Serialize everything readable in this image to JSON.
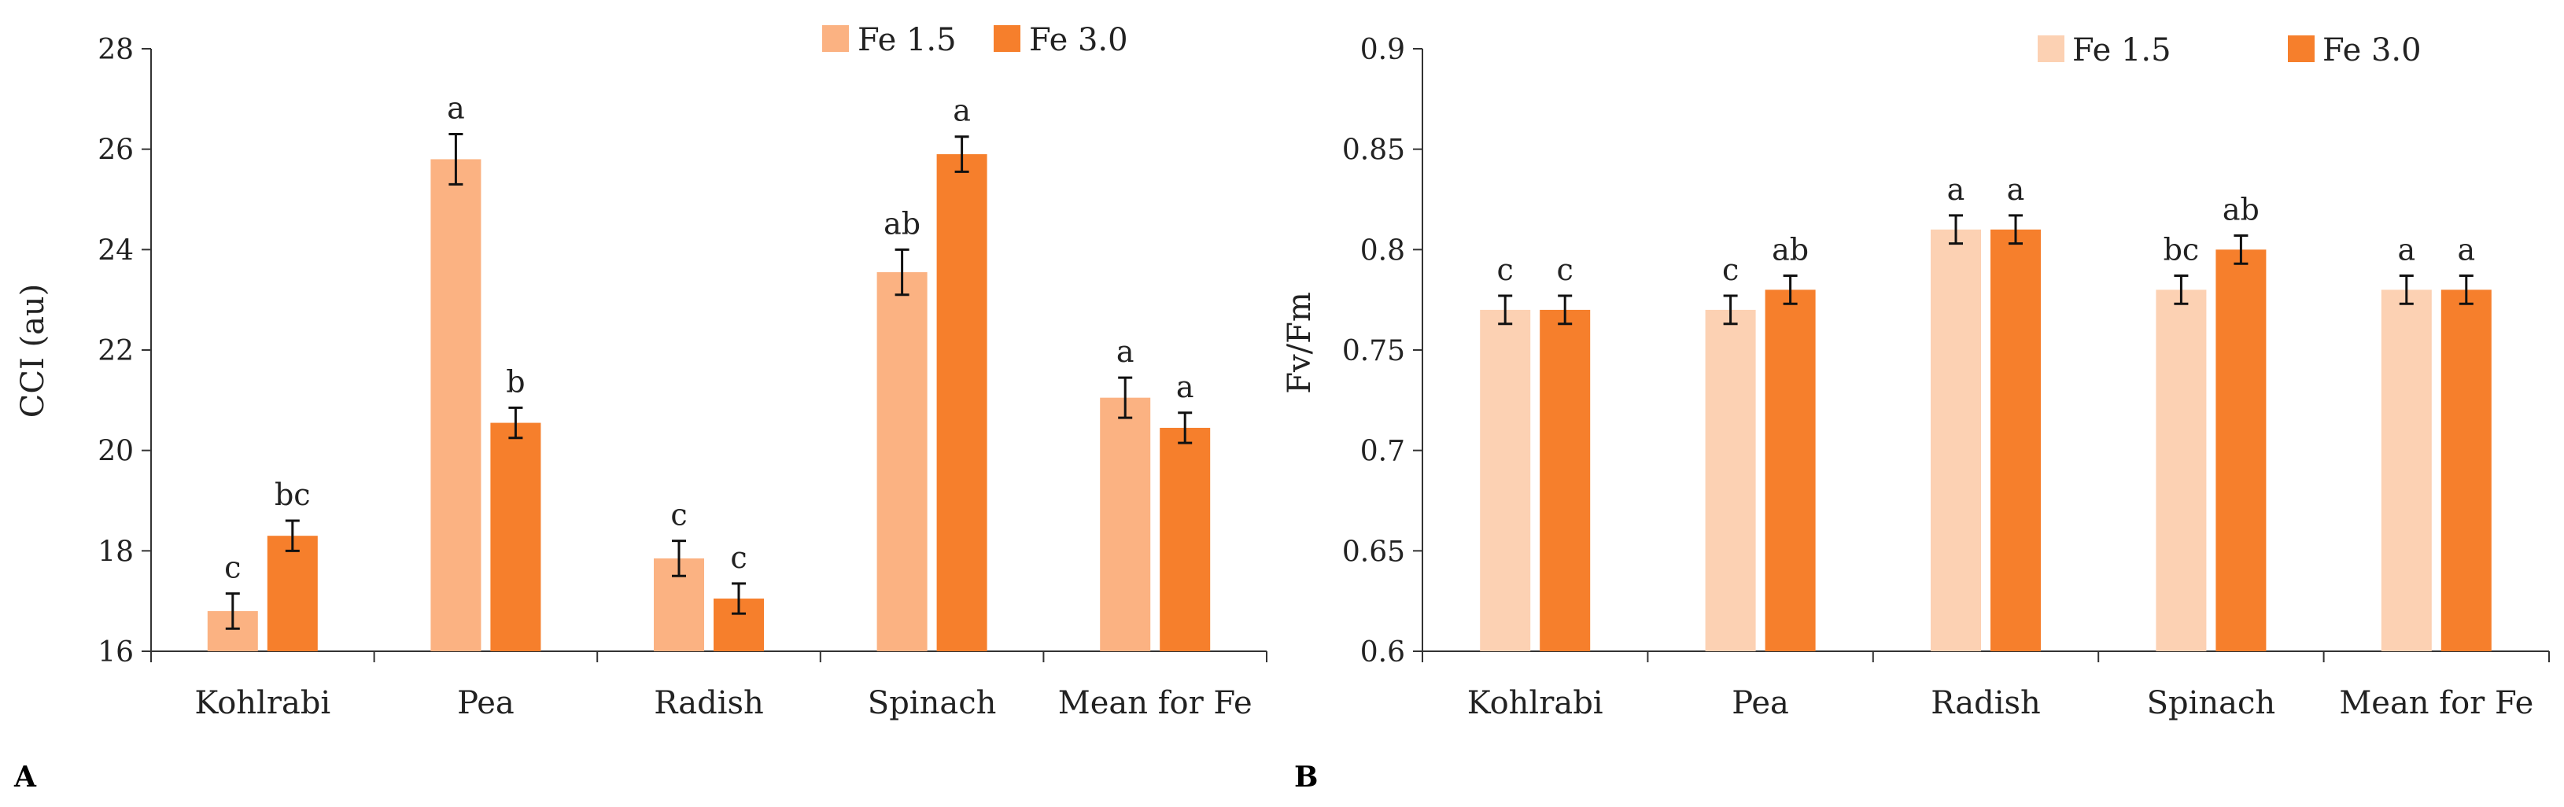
{
  "chart_data": [
    {
      "panel_label": "A",
      "type": "bar",
      "categories": [
        "Kohlrabi",
        "Pea",
        "Radish",
        "Spinach",
        "Mean for Fe"
      ],
      "ylabel": "CCI (au)",
      "xlabel": "",
      "ylim": [
        16,
        28
      ],
      "yticks": [
        16,
        18,
        20,
        22,
        24,
        26,
        28
      ],
      "ytick_labels": [
        "16",
        "18",
        "20",
        "22",
        "24",
        "26",
        "28"
      ],
      "legend_position": "top-right",
      "series": [
        {
          "name": "Fe 1.5",
          "color": "#FBB282",
          "values": [
            16.8,
            25.8,
            17.85,
            23.55,
            21.05
          ],
          "errors": [
            0.35,
            0.5,
            0.35,
            0.45,
            0.4
          ],
          "labels": [
            "c",
            "a",
            "c",
            "ab",
            "a"
          ]
        },
        {
          "name": "Fe 3.0",
          "color": "#F67F2C",
          "values": [
            18.3,
            20.55,
            17.05,
            25.9,
            20.45
          ],
          "errors": [
            0.3,
            0.3,
            0.3,
            0.35,
            0.3
          ],
          "labels": [
            "bc",
            "b",
            "c",
            "a",
            "a"
          ]
        }
      ]
    },
    {
      "panel_label": "B",
      "type": "bar",
      "categories": [
        "Kohlrabi",
        "Pea",
        "Radish",
        "Spinach",
        "Mean for Fe"
      ],
      "ylabel": "Fv/Fm",
      "xlabel": "",
      "ylim": [
        0.6,
        0.9
      ],
      "yticks": [
        0.6,
        0.65,
        0.7,
        0.75,
        0.8,
        0.85,
        0.9
      ],
      "ytick_labels": [
        "0.6",
        "0.65",
        "0.7",
        "0.75",
        "0.8",
        "0.85",
        "0.9"
      ],
      "legend_position": "top-right",
      "series": [
        {
          "name": "Fe 1.5",
          "color": "#FCD1B3",
          "values": [
            0.77,
            0.77,
            0.81,
            0.78,
            0.78
          ],
          "errors": [
            0.007,
            0.007,
            0.007,
            0.007,
            0.007
          ],
          "labels": [
            "c",
            "c",
            "a",
            "bc",
            "a"
          ]
        },
        {
          "name": "Fe 3.0",
          "color": "#F67F2C",
          "values": [
            0.77,
            0.78,
            0.81,
            0.8,
            0.78
          ],
          "errors": [
            0.007,
            0.007,
            0.007,
            0.007,
            0.007
          ],
          "labels": [
            "c",
            "ab",
            "a",
            "ab",
            "a"
          ]
        }
      ]
    }
  ]
}
